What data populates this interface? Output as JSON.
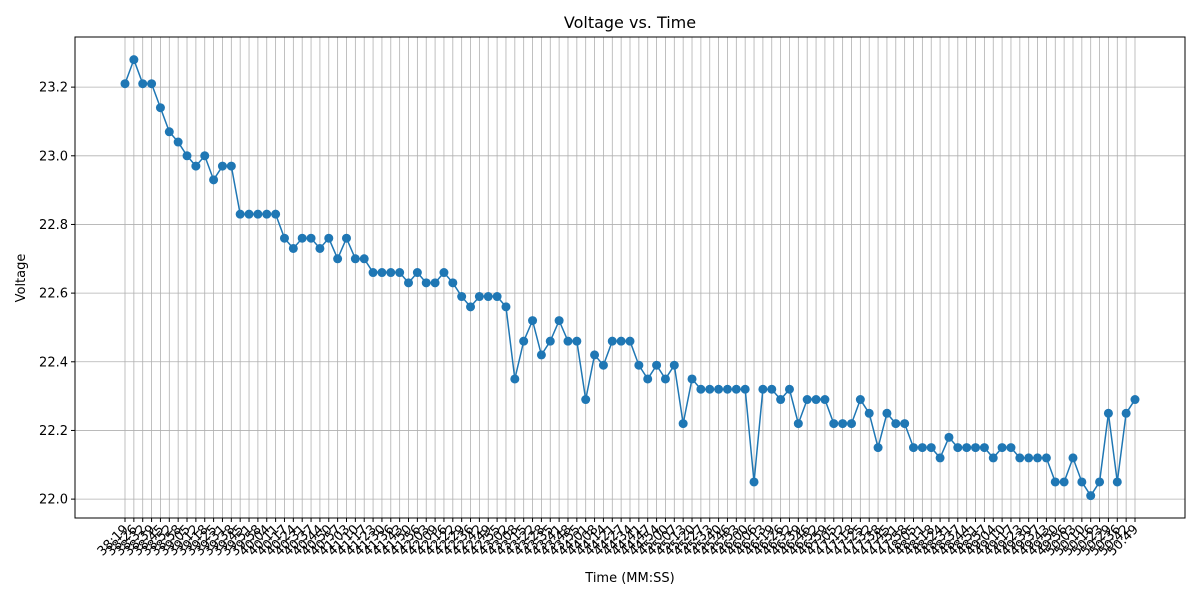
{
  "chart_data": {
    "type": "line",
    "title": "Voltage vs. Time",
    "x_label": "Time (MM:SS)",
    "y_label": "Voltage",
    "color": "#1f77b4",
    "grid": true,
    "categories": [
      "38:19",
      "38:26",
      "38:32",
      "38:39",
      "38:45",
      "38:52",
      "38:58",
      "39:05",
      "39:12",
      "39:18",
      "39:25",
      "39:31",
      "39:38",
      "39:45",
      "39:51",
      "39:58",
      "40:04",
      "40:11",
      "40:17",
      "40:24",
      "40:31",
      "40:37",
      "40:44",
      "40:50",
      "40:57",
      "41:03",
      "41:10",
      "41:17",
      "41:23",
      "41:30",
      "41:36",
      "41:43",
      "41:50",
      "41:56",
      "42:03",
      "42:09",
      "42:16",
      "42:22",
      "42:29",
      "42:36",
      "42:42",
      "42:49",
      "42:55",
      "43:02",
      "43:08",
      "43:15",
      "43:22",
      "43:28",
      "43:35",
      "43:41",
      "43:48",
      "43:55",
      "44:01",
      "44:08",
      "44:14",
      "44:21",
      "44:27",
      "44:34",
      "44:41",
      "44:47",
      "44:54",
      "45:00",
      "45:07",
      "45:13",
      "45:20",
      "45:27",
      "45:33",
      "45:40",
      "45:46",
      "45:53",
      "46:00",
      "46:06",
      "46:13",
      "46:19",
      "46:26",
      "46:32",
      "46:39",
      "46:46",
      "46:52",
      "46:59",
      "47:05",
      "47:12",
      "47:18",
      "47:25",
      "47:32",
      "47:38",
      "47:45",
      "47:51",
      "47:58",
      "48:05",
      "48:11",
      "48:18",
      "48:24",
      "48:31",
      "48:37",
      "48:44",
      "48:51",
      "48:57",
      "49:04",
      "49:10",
      "49:17",
      "49:23",
      "49:30",
      "49:37",
      "49:43",
      "49:50",
      "49:56",
      "50:03",
      "50:10",
      "50:16",
      "50:23",
      "50:29",
      "50:36",
      "50:42",
      "50:49"
    ],
    "values": [
      23.21,
      23.28,
      23.21,
      23.21,
      23.14,
      23.07,
      23.04,
      23.0,
      22.97,
      23.0,
      22.93,
      22.97,
      22.97,
      22.83,
      22.83,
      22.83,
      22.83,
      22.83,
      22.76,
      22.73,
      22.76,
      22.76,
      22.73,
      22.76,
      22.7,
      22.76,
      22.7,
      22.7,
      22.66,
      22.66,
      22.66,
      22.66,
      22.63,
      22.66,
      22.63,
      22.63,
      22.66,
      22.63,
      22.59,
      22.56,
      22.59,
      22.59,
      22.59,
      22.56,
      22.35,
      22.46,
      22.52,
      22.42,
      22.46,
      22.52,
      22.46,
      22.46,
      22.29,
      22.42,
      22.39,
      22.46,
      22.46,
      22.46,
      22.39,
      22.35,
      22.39,
      22.35,
      22.39,
      22.22,
      22.35,
      22.32,
      22.32,
      22.32,
      22.32,
      22.32,
      22.32,
      22.05,
      22.32,
      22.32,
      22.29,
      22.32,
      22.22,
      22.29,
      22.29,
      22.29,
      22.22,
      22.22,
      22.22,
      22.29,
      22.25,
      22.15,
      22.25,
      22.22,
      22.22,
      22.15,
      22.15,
      22.15,
      22.12,
      22.18,
      22.15,
      22.15,
      22.15,
      22.15,
      22.12,
      22.15,
      22.15,
      22.12,
      22.12,
      22.12,
      22.12,
      22.05,
      22.05,
      22.12,
      22.05,
      22.01,
      22.05,
      22.25,
      22.05,
      22.25,
      22.29
    ],
    "ylim": [
      21.945,
      23.346
    ],
    "yticks": [
      {
        "value": 22.0,
        "label": "22.0"
      },
      {
        "value": 22.2,
        "label": "22.2"
      },
      {
        "value": 22.4,
        "label": "22.4"
      },
      {
        "value": 22.6,
        "label": "22.6"
      },
      {
        "value": 22.8,
        "label": "22.8"
      },
      {
        "value": 23.0,
        "label": "23.0"
      },
      {
        "value": 23.2,
        "label": "23.2"
      }
    ]
  }
}
